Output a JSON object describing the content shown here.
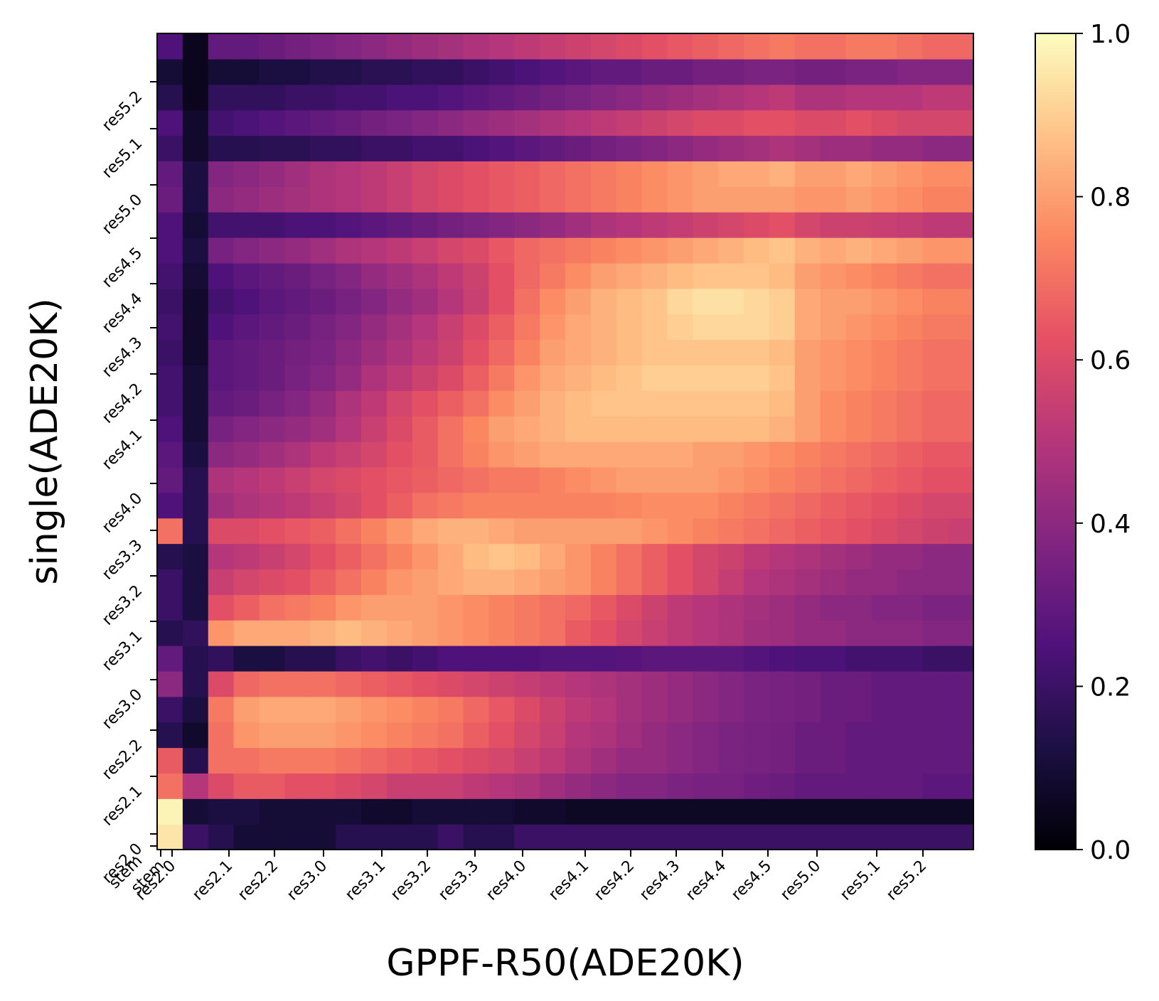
{
  "chart_data": {
    "type": "heatmap",
    "xlabel": "GPPF-R50(ADE20K)",
    "ylabel": "single(ADE20K)",
    "x_ticks": [
      "stem",
      "res2.0",
      "res2.1",
      "res2.2",
      "res3.0",
      "res3.1",
      "res3.2",
      "res3.3",
      "res4.0",
      "res4.1",
      "res4.2",
      "res4.3",
      "res4.4",
      "res4.5",
      "res5.0",
      "res5.1",
      "res5.2"
    ],
    "y_ticks": [
      "stem",
      "res2.0",
      "res2.1",
      "res2.2",
      "res3.0",
      "res3.1",
      "res3.2",
      "res3.3",
      "res4.0",
      "res4.1",
      "res4.2",
      "res4.3",
      "res4.4",
      "res4.5",
      "res5.0",
      "res5.1",
      "res5.2"
    ],
    "colorbar": {
      "min": 0.0,
      "max": 1.0,
      "ticks": [
        "0.0",
        "0.2",
        "0.4",
        "0.6",
        "0.8",
        "1.0"
      ]
    },
    "colormap": "magma",
    "grid_resolution": 32,
    "value_grid_bottom_to_top": [
      [
        0.95,
        0.2,
        0.15,
        0.1,
        0.1,
        0.1,
        0.1,
        0.15,
        0.15,
        0.15,
        0.15,
        0.2,
        0.15,
        0.15,
        0.2,
        0.2,
        0.2,
        0.2,
        0.2,
        0.2,
        0.2,
        0.2,
        0.2,
        0.2,
        0.2,
        0.2,
        0.2,
        0.2,
        0.2,
        0.2,
        0.2,
        0.2
      ],
      [
        0.98,
        0.1,
        0.12,
        0.12,
        0.1,
        0.1,
        0.1,
        0.1,
        0.08,
        0.08,
        0.1,
        0.1,
        0.1,
        0.1,
        0.08,
        0.08,
        0.06,
        0.06,
        0.06,
        0.06,
        0.06,
        0.06,
        0.06,
        0.06,
        0.06,
        0.06,
        0.06,
        0.06,
        0.06,
        0.06,
        0.06,
        0.06
      ],
      [
        0.7,
        0.5,
        0.6,
        0.65,
        0.65,
        0.62,
        0.62,
        0.6,
        0.58,
        0.55,
        0.55,
        0.55,
        0.52,
        0.5,
        0.48,
        0.45,
        0.42,
        0.4,
        0.38,
        0.38,
        0.36,
        0.35,
        0.35,
        0.33,
        0.32,
        0.3,
        0.3,
        0.3,
        0.3,
        0.3,
        0.28,
        0.28
      ],
      [
        0.65,
        0.15,
        0.7,
        0.7,
        0.72,
        0.72,
        0.72,
        0.7,
        0.68,
        0.66,
        0.64,
        0.62,
        0.6,
        0.58,
        0.55,
        0.52,
        0.48,
        0.45,
        0.42,
        0.42,
        0.4,
        0.38,
        0.36,
        0.35,
        0.34,
        0.32,
        0.32,
        0.3,
        0.3,
        0.3,
        0.3,
        0.3
      ],
      [
        0.15,
        0.08,
        0.7,
        0.78,
        0.8,
        0.8,
        0.8,
        0.78,
        0.76,
        0.74,
        0.72,
        0.7,
        0.66,
        0.62,
        0.58,
        0.55,
        0.5,
        0.48,
        0.45,
        0.42,
        0.4,
        0.38,
        0.36,
        0.35,
        0.34,
        0.32,
        0.32,
        0.3,
        0.3,
        0.3,
        0.3,
        0.3
      ],
      [
        0.2,
        0.12,
        0.72,
        0.8,
        0.82,
        0.82,
        0.82,
        0.8,
        0.78,
        0.76,
        0.74,
        0.72,
        0.68,
        0.64,
        0.6,
        0.56,
        0.52,
        0.5,
        0.46,
        0.44,
        0.42,
        0.4,
        0.38,
        0.36,
        0.35,
        0.34,
        0.32,
        0.32,
        0.3,
        0.3,
        0.3,
        0.3
      ],
      [
        0.4,
        0.15,
        0.6,
        0.68,
        0.7,
        0.7,
        0.7,
        0.68,
        0.66,
        0.64,
        0.62,
        0.6,
        0.58,
        0.56,
        0.54,
        0.52,
        0.5,
        0.48,
        0.46,
        0.44,
        0.42,
        0.4,
        0.38,
        0.36,
        0.35,
        0.34,
        0.32,
        0.32,
        0.3,
        0.3,
        0.3,
        0.3
      ],
      [
        0.3,
        0.15,
        0.18,
        0.12,
        0.12,
        0.15,
        0.15,
        0.2,
        0.22,
        0.2,
        0.22,
        0.25,
        0.25,
        0.25,
        0.25,
        0.26,
        0.26,
        0.26,
        0.27,
        0.28,
        0.28,
        0.28,
        0.28,
        0.26,
        0.25,
        0.24,
        0.24,
        0.22,
        0.22,
        0.22,
        0.2,
        0.2
      ],
      [
        0.15,
        0.18,
        0.78,
        0.82,
        0.82,
        0.82,
        0.84,
        0.86,
        0.84,
        0.82,
        0.8,
        0.78,
        0.76,
        0.74,
        0.72,
        0.7,
        0.65,
        0.62,
        0.58,
        0.55,
        0.52,
        0.5,
        0.48,
        0.45,
        0.44,
        0.42,
        0.42,
        0.4,
        0.4,
        0.4,
        0.38,
        0.38
      ],
      [
        0.2,
        0.12,
        0.62,
        0.66,
        0.7,
        0.72,
        0.74,
        0.78,
        0.8,
        0.8,
        0.8,
        0.78,
        0.76,
        0.74,
        0.72,
        0.7,
        0.68,
        0.64,
        0.6,
        0.56,
        0.52,
        0.5,
        0.48,
        0.46,
        0.44,
        0.42,
        0.4,
        0.4,
        0.38,
        0.38,
        0.36,
        0.36
      ],
      [
        0.2,
        0.12,
        0.55,
        0.58,
        0.6,
        0.62,
        0.66,
        0.7,
        0.74,
        0.78,
        0.8,
        0.82,
        0.84,
        0.84,
        0.82,
        0.8,
        0.78,
        0.74,
        0.7,
        0.66,
        0.62,
        0.58,
        0.54,
        0.5,
        0.48,
        0.46,
        0.44,
        0.42,
        0.42,
        0.4,
        0.4,
        0.4
      ],
      [
        0.15,
        0.12,
        0.5,
        0.52,
        0.55,
        0.58,
        0.62,
        0.66,
        0.7,
        0.74,
        0.78,
        0.82,
        0.86,
        0.88,
        0.86,
        0.82,
        0.78,
        0.74,
        0.7,
        0.66,
        0.62,
        0.58,
        0.56,
        0.52,
        0.5,
        0.48,
        0.46,
        0.44,
        0.42,
        0.42,
        0.4,
        0.4
      ],
      [
        0.7,
        0.15,
        0.6,
        0.6,
        0.62,
        0.64,
        0.66,
        0.7,
        0.74,
        0.78,
        0.82,
        0.84,
        0.84,
        0.82,
        0.8,
        0.8,
        0.8,
        0.8,
        0.8,
        0.78,
        0.76,
        0.74,
        0.72,
        0.7,
        0.68,
        0.66,
        0.64,
        0.62,
        0.6,
        0.58,
        0.56,
        0.55
      ],
      [
        0.25,
        0.15,
        0.45,
        0.48,
        0.5,
        0.52,
        0.55,
        0.58,
        0.62,
        0.66,
        0.7,
        0.72,
        0.74,
        0.74,
        0.74,
        0.74,
        0.74,
        0.74,
        0.75,
        0.76,
        0.76,
        0.76,
        0.74,
        0.72,
        0.7,
        0.68,
        0.66,
        0.64,
        0.62,
        0.6,
        0.58,
        0.58
      ],
      [
        0.3,
        0.15,
        0.48,
        0.5,
        0.52,
        0.55,
        0.58,
        0.6,
        0.62,
        0.64,
        0.66,
        0.68,
        0.7,
        0.72,
        0.72,
        0.74,
        0.76,
        0.78,
        0.8,
        0.8,
        0.8,
        0.8,
        0.78,
        0.76,
        0.74,
        0.72,
        0.7,
        0.68,
        0.66,
        0.64,
        0.62,
        0.62
      ],
      [
        0.28,
        0.12,
        0.4,
        0.42,
        0.45,
        0.48,
        0.52,
        0.55,
        0.58,
        0.62,
        0.65,
        0.7,
        0.74,
        0.78,
        0.8,
        0.82,
        0.82,
        0.82,
        0.82,
        0.82,
        0.82,
        0.8,
        0.8,
        0.78,
        0.76,
        0.74,
        0.72,
        0.7,
        0.68,
        0.66,
        0.64,
        0.64
      ],
      [
        0.25,
        0.1,
        0.35,
        0.38,
        0.4,
        0.42,
        0.45,
        0.5,
        0.55,
        0.6,
        0.65,
        0.7,
        0.75,
        0.8,
        0.82,
        0.84,
        0.86,
        0.86,
        0.86,
        0.86,
        0.86,
        0.86,
        0.86,
        0.86,
        0.84,
        0.8,
        0.76,
        0.74,
        0.72,
        0.7,
        0.68,
        0.68
      ],
      [
        0.22,
        0.1,
        0.3,
        0.32,
        0.35,
        0.38,
        0.42,
        0.48,
        0.52,
        0.58,
        0.62,
        0.66,
        0.7,
        0.76,
        0.8,
        0.84,
        0.86,
        0.88,
        0.88,
        0.88,
        0.88,
        0.88,
        0.88,
        0.88,
        0.86,
        0.8,
        0.76,
        0.74,
        0.72,
        0.7,
        0.68,
        0.68
      ],
      [
        0.22,
        0.1,
        0.28,
        0.3,
        0.32,
        0.35,
        0.38,
        0.42,
        0.48,
        0.52,
        0.56,
        0.6,
        0.66,
        0.72,
        0.78,
        0.82,
        0.84,
        0.86,
        0.88,
        0.9,
        0.9,
        0.9,
        0.9,
        0.9,
        0.88,
        0.8,
        0.78,
        0.76,
        0.74,
        0.72,
        0.7,
        0.7
      ],
      [
        0.2,
        0.08,
        0.28,
        0.3,
        0.32,
        0.34,
        0.36,
        0.4,
        0.44,
        0.48,
        0.52,
        0.56,
        0.62,
        0.68,
        0.74,
        0.8,
        0.82,
        0.84,
        0.86,
        0.88,
        0.88,
        0.88,
        0.88,
        0.88,
        0.86,
        0.8,
        0.78,
        0.76,
        0.74,
        0.72,
        0.7,
        0.7
      ],
      [
        0.22,
        0.08,
        0.25,
        0.28,
        0.3,
        0.32,
        0.35,
        0.38,
        0.42,
        0.46,
        0.5,
        0.55,
        0.6,
        0.66,
        0.72,
        0.78,
        0.82,
        0.84,
        0.86,
        0.88,
        0.9,
        0.92,
        0.92,
        0.92,
        0.9,
        0.82,
        0.8,
        0.78,
        0.76,
        0.74,
        0.72,
        0.72
      ],
      [
        0.2,
        0.08,
        0.22,
        0.25,
        0.28,
        0.3,
        0.32,
        0.35,
        0.38,
        0.42,
        0.45,
        0.5,
        0.55,
        0.62,
        0.7,
        0.76,
        0.8,
        0.84,
        0.86,
        0.88,
        0.92,
        0.94,
        0.94,
        0.92,
        0.9,
        0.82,
        0.8,
        0.8,
        0.78,
        0.76,
        0.74,
        0.74
      ],
      [
        0.22,
        0.1,
        0.25,
        0.28,
        0.3,
        0.32,
        0.35,
        0.38,
        0.42,
        0.45,
        0.48,
        0.52,
        0.56,
        0.62,
        0.68,
        0.72,
        0.76,
        0.8,
        0.82,
        0.84,
        0.86,
        0.88,
        0.88,
        0.88,
        0.86,
        0.8,
        0.78,
        0.76,
        0.74,
        0.72,
        0.7,
        0.7
      ],
      [
        0.25,
        0.12,
        0.35,
        0.38,
        0.4,
        0.42,
        0.45,
        0.48,
        0.5,
        0.52,
        0.55,
        0.58,
        0.6,
        0.64,
        0.68,
        0.7,
        0.72,
        0.74,
        0.76,
        0.78,
        0.8,
        0.82,
        0.84,
        0.86,
        0.88,
        0.84,
        0.82,
        0.84,
        0.82,
        0.8,
        0.78,
        0.78
      ],
      [
        0.25,
        0.1,
        0.22,
        0.22,
        0.22,
        0.24,
        0.24,
        0.26,
        0.28,
        0.3,
        0.32,
        0.34,
        0.36,
        0.38,
        0.4,
        0.42,
        0.45,
        0.48,
        0.5,
        0.52,
        0.54,
        0.56,
        0.58,
        0.6,
        0.62,
        0.58,
        0.56,
        0.56,
        0.55,
        0.54,
        0.52,
        0.52
      ],
      [
        0.32,
        0.12,
        0.4,
        0.42,
        0.44,
        0.46,
        0.48,
        0.5,
        0.52,
        0.55,
        0.58,
        0.6,
        0.62,
        0.64,
        0.66,
        0.68,
        0.7,
        0.72,
        0.74,
        0.76,
        0.78,
        0.8,
        0.8,
        0.8,
        0.8,
        0.78,
        0.78,
        0.8,
        0.78,
        0.76,
        0.74,
        0.74
      ],
      [
        0.3,
        0.12,
        0.38,
        0.4,
        0.42,
        0.45,
        0.48,
        0.5,
        0.52,
        0.55,
        0.58,
        0.6,
        0.62,
        0.64,
        0.66,
        0.68,
        0.7,
        0.72,
        0.74,
        0.76,
        0.78,
        0.8,
        0.82,
        0.82,
        0.84,
        0.8,
        0.8,
        0.82,
        0.8,
        0.78,
        0.76,
        0.76
      ],
      [
        0.2,
        0.08,
        0.15,
        0.15,
        0.16,
        0.16,
        0.18,
        0.18,
        0.2,
        0.2,
        0.22,
        0.22,
        0.24,
        0.26,
        0.28,
        0.3,
        0.32,
        0.34,
        0.36,
        0.38,
        0.4,
        0.42,
        0.44,
        0.46,
        0.48,
        0.46,
        0.44,
        0.44,
        0.42,
        0.42,
        0.4,
        0.4
      ],
      [
        0.25,
        0.08,
        0.22,
        0.24,
        0.26,
        0.28,
        0.3,
        0.32,
        0.34,
        0.36,
        0.38,
        0.4,
        0.42,
        0.44,
        0.46,
        0.48,
        0.5,
        0.52,
        0.54,
        0.56,
        0.58,
        0.6,
        0.6,
        0.62,
        0.62,
        0.6,
        0.6,
        0.62,
        0.6,
        0.58,
        0.58,
        0.58
      ],
      [
        0.15,
        0.05,
        0.18,
        0.18,
        0.18,
        0.2,
        0.2,
        0.22,
        0.22,
        0.24,
        0.24,
        0.26,
        0.28,
        0.3,
        0.32,
        0.34,
        0.36,
        0.38,
        0.4,
        0.42,
        0.44,
        0.46,
        0.48,
        0.5,
        0.52,
        0.48,
        0.48,
        0.5,
        0.5,
        0.5,
        0.52,
        0.52
      ],
      [
        0.1,
        0.05,
        0.1,
        0.1,
        0.12,
        0.12,
        0.14,
        0.14,
        0.16,
        0.16,
        0.18,
        0.18,
        0.2,
        0.22,
        0.24,
        0.26,
        0.28,
        0.3,
        0.3,
        0.32,
        0.32,
        0.34,
        0.34,
        0.36,
        0.36,
        0.34,
        0.34,
        0.36,
        0.36,
        0.38,
        0.38,
        0.38
      ],
      [
        0.25,
        0.05,
        0.3,
        0.3,
        0.32,
        0.34,
        0.36,
        0.38,
        0.4,
        0.42,
        0.44,
        0.46,
        0.48,
        0.5,
        0.52,
        0.54,
        0.56,
        0.58,
        0.6,
        0.62,
        0.64,
        0.66,
        0.68,
        0.7,
        0.72,
        0.7,
        0.7,
        0.72,
        0.72,
        0.7,
        0.68,
        0.68
      ]
    ]
  }
}
